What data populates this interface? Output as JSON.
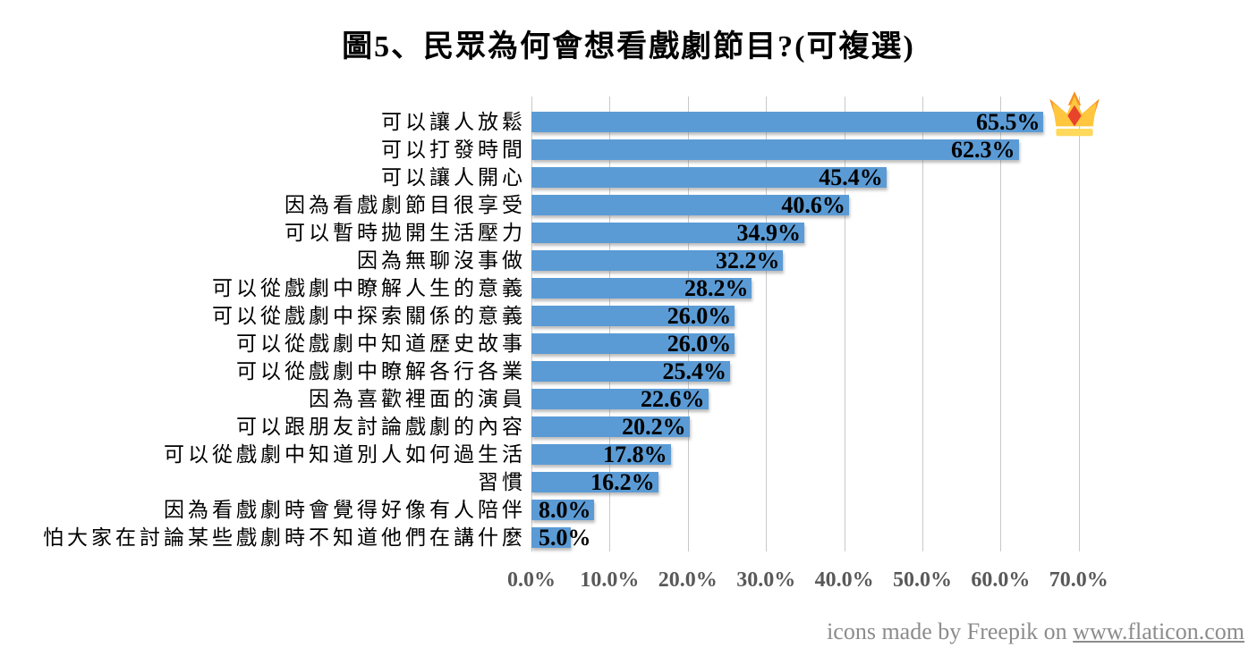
{
  "title": "圖5、民眾為何會想看戲劇節目?(可複選)",
  "chart_data": {
    "type": "bar",
    "orientation": "horizontal",
    "title": "圖5、民眾為何會想看戲劇節目?(可複選)",
    "categories": [
      "可以讓人放鬆",
      "可以打發時間",
      "可以讓人開心",
      "因為看戲劇節目很享受",
      "可以暫時拋開生活壓力",
      "因為無聊沒事做",
      "可以從戲劇中瞭解人生的意義",
      "可以從戲劇中探索關係的意義",
      "可以從戲劇中知道歷史故事",
      "可以從戲劇中瞭解各行各業",
      "因為喜歡裡面的演員",
      "可以跟朋友討論戲劇的內容",
      "可以從戲劇中知道別人如何過生活",
      "習慣",
      "因為看戲劇時會覺得好像有人陪伴",
      "怕大家在討論某些戲劇時不知道他們在講什麼"
    ],
    "values": [
      65.5,
      62.3,
      45.4,
      40.6,
      34.9,
      32.2,
      28.2,
      26.0,
      26.0,
      25.4,
      22.6,
      20.2,
      17.8,
      16.2,
      8.0,
      5.0
    ],
    "value_labels": [
      "65.5%",
      "62.3%",
      "45.4%",
      "40.6%",
      "34.9%",
      "32.2%",
      "28.2%",
      "26.0%",
      "26.0%",
      "25.4%",
      "22.6%",
      "20.2%",
      "17.8%",
      "16.2%",
      "8.0%",
      "5.0%"
    ],
    "x_ticks": [
      "0.0%",
      "10.0%",
      "20.0%",
      "30.0%",
      "40.0%",
      "50.0%",
      "60.0%",
      "70.0%"
    ],
    "xlim": [
      0,
      75
    ],
    "grid": true,
    "legend": false,
    "value_label_position": "inside-end",
    "annotations": [
      {
        "type": "crown-icon",
        "row": 0,
        "meaning": "highest-ranked answer"
      }
    ]
  },
  "colors": {
    "bar": "#5B9BD5",
    "grid": "#C9C9C9",
    "axis_text": "#595959",
    "value_text": "#000000",
    "footer_text": "#8C8C8C"
  },
  "icons": {
    "crown": {
      "body": "#FFC63E",
      "spikes": "#F78F20",
      "gem": "#E8432B",
      "band": "#FFD95C"
    }
  },
  "footer": {
    "prefix": "icons made by Freepik on ",
    "link": "www.flaticon.com"
  }
}
